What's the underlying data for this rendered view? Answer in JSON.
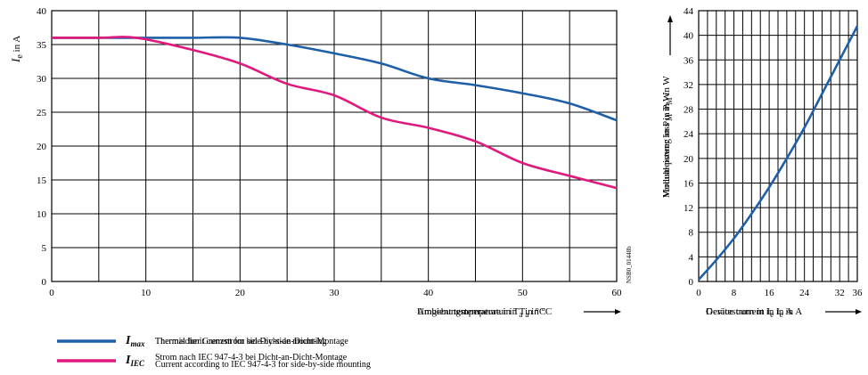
{
  "chart_data": [
    {
      "type": "line",
      "ylabel_main": "I",
      "ylabel_sub": "e",
      "ylabel_unit": " in A",
      "xlabel_a": "Umgebungstemperatur in T",
      "xlabel_b": "Ambient temperature in T",
      "xlabel_sub": "a",
      "xlabel_unit": " in °C",
      "xlim": [
        0,
        60
      ],
      "ylim": [
        0,
        40
      ],
      "xticks": [
        "0",
        "10",
        "20",
        "30",
        "40",
        "50",
        "60"
      ],
      "yticks": [
        "0",
        "5",
        "10",
        "15",
        "20",
        "25",
        "30",
        "35",
        "40"
      ],
      "grid": true,
      "watermark": "NSB0_01448b",
      "series": [
        {
          "color": "#1f5fa8",
          "x": [
            0,
            5,
            10,
            15,
            20,
            25,
            30,
            35,
            40,
            45,
            50,
            55,
            60
          ],
          "y": [
            36,
            36,
            36,
            36,
            36,
            35,
            33.7,
            32.2,
            30,
            29,
            27.8,
            26.3,
            23.8
          ]
        },
        {
          "color": "#e0197d",
          "x": [
            0,
            5,
            9,
            15,
            20,
            25,
            30,
            35,
            40,
            45,
            50,
            55,
            60
          ],
          "y": [
            36,
            36,
            36,
            34.2,
            32.2,
            29.2,
            27.5,
            24.2,
            22.7,
            20.7,
            17.5,
            15.6,
            13.8
          ]
        }
      ]
    },
    {
      "type": "line",
      "ylabel_a": "Verlustleistung in P",
      "ylabel_b": "Module power loss in P",
      "ylabel_sub": "M",
      "ylabel_unit": " in W",
      "xlabel_a": "Gerätestrom in I",
      "xlabel_b": "Device current in I",
      "xlabel_sub": "e",
      "xlabel_unit": " in A",
      "xlim": [
        0,
        36
      ],
      "ylim": [
        0,
        44
      ],
      "xticks": [
        "0",
        "8",
        "16",
        "24",
        "32",
        "36"
      ],
      "yticks": [
        "0",
        "4",
        "8",
        "12",
        "16",
        "20",
        "24",
        "28",
        "32",
        "36",
        "40",
        "44"
      ],
      "grid": true,
      "series": [
        {
          "color": "#1f5fa8",
          "x": [
            0,
            4,
            8,
            12,
            16,
            20,
            24,
            28,
            32,
            36
          ],
          "y": [
            0.3,
            3.5,
            7,
            11,
            15.3,
            20,
            25,
            30.5,
            36,
            41.5
          ]
        }
      ]
    }
  ],
  "legend": [
    {
      "symbol": "I",
      "symbol_sub": "max",
      "color": "#1f5fa8",
      "text_a": "Thermischer Grenzstrom bei Dicht-an-Dicht-Montage",
      "text_b": "Thermal limit current for side-by-side mounting"
    },
    {
      "symbol": "I",
      "symbol_sub": "IEC",
      "color": "#e0197d",
      "text_a": "Strom nach IEC 947-4-3 bei Dicht-an-Dicht-Montage",
      "text_b": "Current according to IEC 947-4-3 for side-by-side mounting"
    }
  ]
}
